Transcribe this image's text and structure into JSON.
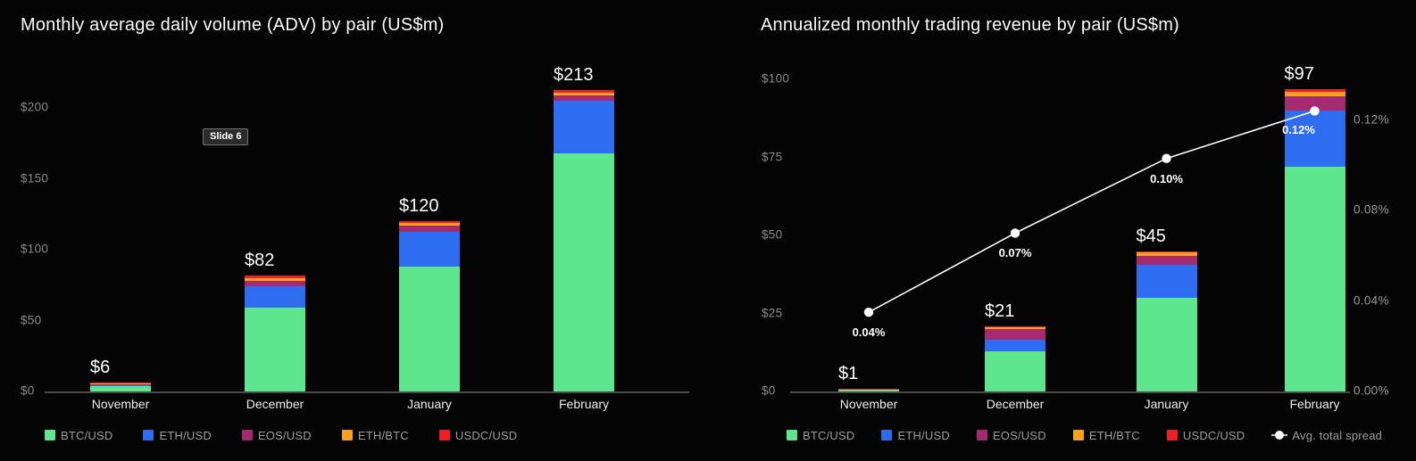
{
  "page": {
    "background": "#040404",
    "slide_badge": "Slide 6"
  },
  "chart_data": [
    {
      "type": "bar",
      "subtype": "stacked-bar",
      "title": "Monthly average daily volume (ADV) by pair (US$m)",
      "categories": [
        "November",
        "December",
        "January",
        "February"
      ],
      "series": [
        {
          "name": "BTC/USD",
          "color": "#5EE68E",
          "values": [
            3.5,
            59,
            88,
            168
          ]
        },
        {
          "name": "ETH/USD",
          "color": "#2E6CF1",
          "values": [
            1.5,
            15,
            25,
            37
          ]
        },
        {
          "name": "EOS/USD",
          "color": "#A62A70",
          "values": [
            0.3,
            4,
            4,
            4
          ]
        },
        {
          "name": "ETH/BTC",
          "color": "#F7A21A",
          "values": [
            0.2,
            2,
            2,
            2
          ]
        },
        {
          "name": "USDC/USD",
          "color": "#EC2025",
          "values": [
            0.5,
            2,
            1,
            2
          ]
        }
      ],
      "totals": [
        6,
        82,
        120,
        213
      ],
      "total_labels": [
        "$6",
        "$82",
        "$120",
        "$213"
      ],
      "y_ticks": {
        "values": [
          0,
          50,
          100,
          150,
          200
        ],
        "labels": [
          "$0",
          "$50",
          "$100",
          "$150",
          "$200"
        ]
      },
      "ylim": [
        0,
        216
      ],
      "grid": false,
      "legend_position": "bottom"
    },
    {
      "type": "bar",
      "subtype": "stacked-bar-with-line",
      "title": "Annualized monthly trading revenue by pair (US$m)",
      "categories": [
        "November",
        "December",
        "January",
        "February"
      ],
      "series": [
        {
          "name": "BTC/USD",
          "color": "#5EE68E",
          "values": [
            0.5,
            13,
            30,
            72
          ]
        },
        {
          "name": "ETH/USD",
          "color": "#2E6CF1",
          "values": [
            0.25,
            3.5,
            10.5,
            18
          ]
        },
        {
          "name": "EOS/USD",
          "color": "#A62A70",
          "values": [
            0.1,
            3.5,
            3,
            4.5
          ]
        },
        {
          "name": "ETH/BTC",
          "color": "#F7A21A",
          "values": [
            0.05,
            0.5,
            1,
            1.5
          ]
        },
        {
          "name": "USDC/USD",
          "color": "#EC2025",
          "values": [
            0.1,
            0.5,
            0.5,
            1
          ]
        }
      ],
      "totals": [
        1,
        21,
        45,
        97
      ],
      "total_labels": [
        "$1",
        "$21",
        "$45",
        "$97"
      ],
      "y_ticks": {
        "values": [
          0,
          25,
          50,
          75,
          100
        ],
        "labels": [
          "$0",
          "$25",
          "$50",
          "$75",
          "$100"
        ]
      },
      "ylim": [
        0,
        102
      ],
      "right_axis": {
        "tick_values": [
          0,
          0.04,
          0.08,
          0.12
        ],
        "tick_labels": [
          "0.00%",
          "0.04%",
          "0.08%",
          "0.12%"
        ],
        "lim": [
          0,
          0.141
        ]
      },
      "line_series": {
        "name": "Avg. total spread",
        "color": "#FFFFFF",
        "values_pct": [
          0.035,
          0.07,
          0.103,
          0.124
        ],
        "point_labels": [
          "0.04%",
          "0.07%",
          "0.10%",
          "0.12%"
        ]
      },
      "grid": false,
      "legend_position": "bottom"
    }
  ]
}
